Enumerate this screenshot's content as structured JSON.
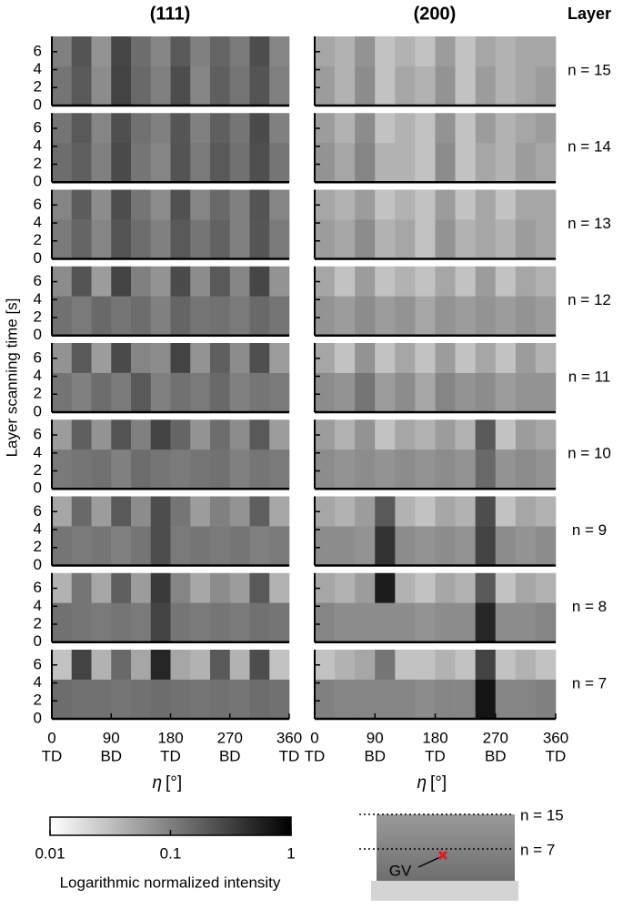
{
  "chart_data": {
    "type": "heatmap",
    "column_titles": [
      "(111)",
      "(200)"
    ],
    "layer_header": "Layer",
    "ylabel": "Layer scanning time [s]",
    "xlabel": {
      "symbol": "η",
      "unit": "[°]"
    },
    "xlim": [
      0,
      360
    ],
    "xticks": [
      0,
      90,
      180,
      270,
      360
    ],
    "xtick_directions": [
      "TD",
      "BD",
      "TD",
      "BD",
      "TD"
    ],
    "ylim": [
      0,
      7.7
    ],
    "yticks": [
      0,
      2,
      4,
      6
    ],
    "x_edges": [
      0,
      30,
      60,
      90,
      120,
      150,
      180,
      210,
      240,
      270,
      300,
      330,
      360
    ],
    "y_edges": [
      0,
      4.4,
      7.7
    ],
    "layers": [
      {
        "label": "n = 15",
        "panels": [
          {
            "rows": [
              [
                0.12,
                0.2,
                0.08,
                0.3,
                0.15,
                0.1,
                0.25,
                0.09,
                0.18,
                0.12,
                0.22,
                0.1
              ],
              [
                0.1,
                0.22,
                0.07,
                0.28,
                0.14,
                0.09,
                0.2,
                0.1,
                0.16,
                0.11,
                0.25,
                0.09
              ]
            ]
          },
          {
            "rows": [
              [
                0.06,
                0.04,
                0.08,
                0.03,
                0.05,
                0.04,
                0.07,
                0.03,
                0.06,
                0.04,
                0.05,
                0.06
              ],
              [
                0.05,
                0.04,
                0.07,
                0.03,
                0.04,
                0.03,
                0.06,
                0.03,
                0.05,
                0.04,
                0.05,
                0.05
              ]
            ]
          }
        ]
      },
      {
        "label": "n = 14",
        "panels": [
          {
            "rows": [
              [
                0.14,
                0.18,
                0.1,
                0.26,
                0.12,
                0.09,
                0.22,
                0.11,
                0.2,
                0.13,
                0.24,
                0.12
              ],
              [
                0.12,
                0.2,
                0.09,
                0.24,
                0.13,
                0.1,
                0.21,
                0.1,
                0.18,
                0.12,
                0.26,
                0.1
              ]
            ]
          },
          {
            "rows": [
              [
                0.07,
                0.05,
                0.09,
                0.04,
                0.04,
                0.03,
                0.08,
                0.03,
                0.05,
                0.04,
                0.06,
                0.05
              ],
              [
                0.06,
                0.04,
                0.08,
                0.03,
                0.04,
                0.03,
                0.07,
                0.03,
                0.06,
                0.04,
                0.05,
                0.06
              ]
            ]
          }
        ]
      },
      {
        "label": "n = 13",
        "panels": [
          {
            "rows": [
              [
                0.11,
                0.16,
                0.09,
                0.22,
                0.14,
                0.1,
                0.2,
                0.12,
                0.17,
                0.1,
                0.21,
                0.11
              ],
              [
                0.09,
                0.19,
                0.08,
                0.25,
                0.12,
                0.08,
                0.23,
                0.09,
                0.15,
                0.1,
                0.22,
                0.09
              ]
            ]
          },
          {
            "rows": [
              [
                0.06,
                0.05,
                0.08,
                0.04,
                0.05,
                0.03,
                0.07,
                0.04,
                0.05,
                0.04,
                0.06,
                0.05
              ],
              [
                0.05,
                0.04,
                0.06,
                0.03,
                0.04,
                0.03,
                0.06,
                0.03,
                0.05,
                0.03,
                0.05,
                0.05
              ]
            ]
          }
        ]
      },
      {
        "label": "n = 12",
        "panels": [
          {
            "rows": [
              [
                0.13,
                0.11,
                0.15,
                0.12,
                0.14,
                0.1,
                0.16,
                0.12,
                0.13,
                0.11,
                0.15,
                0.12
              ],
              [
                0.08,
                0.22,
                0.06,
                0.3,
                0.1,
                0.07,
                0.26,
                0.08,
                0.2,
                0.09,
                0.28,
                0.07
              ]
            ]
          },
          {
            "rows": [
              [
                0.07,
                0.06,
                0.08,
                0.06,
                0.07,
                0.05,
                0.07,
                0.06,
                0.07,
                0.06,
                0.07,
                0.06
              ],
              [
                0.05,
                0.03,
                0.06,
                0.03,
                0.04,
                0.03,
                0.05,
                0.03,
                0.06,
                0.03,
                0.05,
                0.04
              ]
            ]
          }
        ]
      },
      {
        "label": "n = 11",
        "panels": [
          {
            "rows": [
              [
                0.12,
                0.1,
                0.14,
                0.11,
                0.2,
                0.1,
                0.13,
                0.11,
                0.15,
                0.1,
                0.12,
                0.11
              ],
              [
                0.07,
                0.2,
                0.06,
                0.26,
                0.09,
                0.08,
                0.3,
                0.07,
                0.18,
                0.08,
                0.24,
                0.06
              ]
            ]
          },
          {
            "rows": [
              [
                0.08,
                0.07,
                0.12,
                0.06,
                0.08,
                0.05,
                0.09,
                0.07,
                0.08,
                0.06,
                0.07,
                0.07
              ],
              [
                0.05,
                0.03,
                0.07,
                0.03,
                0.05,
                0.03,
                0.06,
                0.03,
                0.05,
                0.03,
                0.06,
                0.04
              ]
            ]
          }
        ]
      },
      {
        "label": "n = 10",
        "panels": [
          {
            "rows": [
              [
                0.11,
                0.12,
                0.13,
                0.1,
                0.14,
                0.12,
                0.11,
                0.12,
                0.13,
                0.1,
                0.12,
                0.11
              ],
              [
                0.06,
                0.18,
                0.07,
                0.22,
                0.1,
                0.3,
                0.16,
                0.07,
                0.14,
                0.08,
                0.2,
                0.06
              ]
            ]
          },
          {
            "rows": [
              [
                0.08,
                0.07,
                0.08,
                0.07,
                0.08,
                0.07,
                0.08,
                0.07,
                0.15,
                0.07,
                0.08,
                0.07
              ],
              [
                0.06,
                0.04,
                0.07,
                0.03,
                0.05,
                0.04,
                0.06,
                0.04,
                0.2,
                0.03,
                0.06,
                0.05
              ]
            ]
          }
        ]
      },
      {
        "label": "n = 9",
        "panels": [
          {
            "rows": [
              [
                0.12,
                0.11,
                0.12,
                0.1,
                0.12,
                0.25,
                0.11,
                0.12,
                0.11,
                0.12,
                0.1,
                0.11
              ],
              [
                0.05,
                0.15,
                0.06,
                0.2,
                0.08,
                0.25,
                0.12,
                0.06,
                0.1,
                0.07,
                0.18,
                0.05
              ]
            ]
          },
          {
            "rows": [
              [
                0.08,
                0.08,
                0.07,
                0.4,
                0.08,
                0.07,
                0.08,
                0.07,
                0.3,
                0.08,
                0.07,
                0.08
              ],
              [
                0.05,
                0.04,
                0.06,
                0.2,
                0.04,
                0.03,
                0.05,
                0.04,
                0.25,
                0.03,
                0.05,
                0.04
              ]
            ]
          }
        ]
      },
      {
        "label": "n = 8",
        "panels": [
          {
            "rows": [
              [
                0.13,
                0.12,
                0.11,
                0.12,
                0.11,
                0.3,
                0.12,
                0.11,
                0.12,
                0.11,
                0.13,
                0.12
              ],
              [
                0.04,
                0.12,
                0.05,
                0.18,
                0.06,
                0.35,
                0.09,
                0.05,
                0.08,
                0.06,
                0.2,
                0.04
              ]
            ]
          },
          {
            "rows": [
              [
                0.09,
                0.08,
                0.08,
                0.08,
                0.08,
                0.07,
                0.08,
                0.08,
                0.5,
                0.08,
                0.08,
                0.09
              ],
              [
                0.05,
                0.04,
                0.06,
                0.6,
                0.04,
                0.03,
                0.05,
                0.04,
                0.2,
                0.03,
                0.05,
                0.04
              ]
            ]
          }
        ]
      },
      {
        "label": "n = 7",
        "panels": [
          {
            "rows": [
              [
                0.14,
                0.13,
                0.13,
                0.12,
                0.13,
                0.14,
                0.13,
                0.12,
                0.13,
                0.12,
                0.14,
                0.13
              ],
              [
                0.03,
                0.3,
                0.04,
                0.15,
                0.05,
                0.5,
                0.05,
                0.04,
                0.2,
                0.04,
                0.25,
                0.03
              ]
            ]
          },
          {
            "rows": [
              [
                0.1,
                0.09,
                0.09,
                0.09,
                0.09,
                0.08,
                0.09,
                0.09,
                0.7,
                0.09,
                0.09,
                0.1
              ],
              [
                0.03,
                0.04,
                0.05,
                0.12,
                0.03,
                0.03,
                0.04,
                0.03,
                0.3,
                0.03,
                0.04,
                0.03
              ]
            ]
          }
        ]
      }
    ],
    "colorbar": {
      "label": "Logarithmic normalized intensity",
      "scale": "log",
      "lim": [
        0.01,
        1
      ],
      "ticks": [
        0.01,
        0.1,
        1
      ]
    },
    "schematic": {
      "layer_labels": [
        "n = 15",
        "n = 7"
      ],
      "marker_label": "GV",
      "marker_color": "#e0191e"
    }
  }
}
